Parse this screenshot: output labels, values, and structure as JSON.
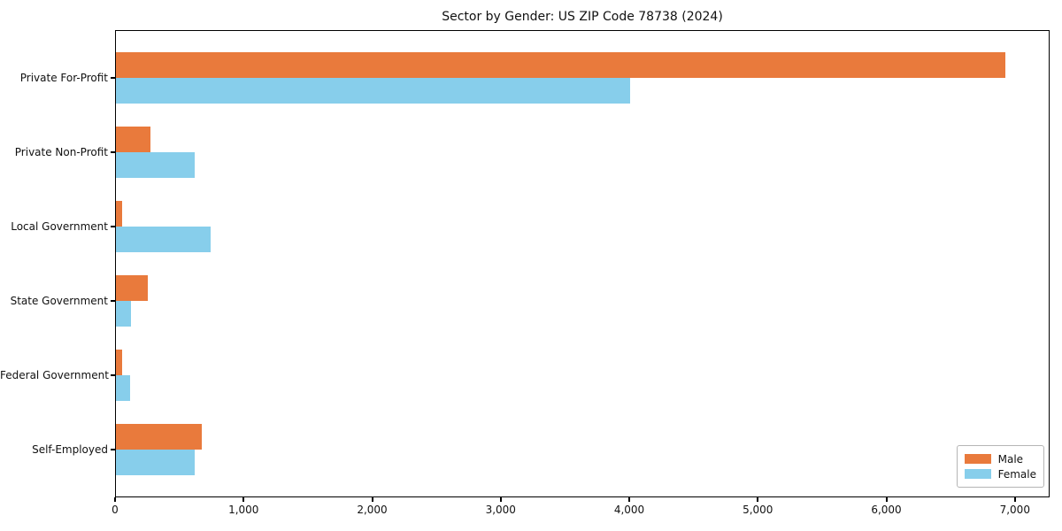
{
  "chart_data": {
    "type": "bar",
    "orientation": "horizontal",
    "title": "Sector by Gender: US ZIP Code 78738 (2024)",
    "categories": [
      "Private For-Profit",
      "Private Non-Profit",
      "Local Government",
      "State Government",
      "Federal Government",
      "Self-Employed"
    ],
    "series": [
      {
        "name": "Male",
        "color": "#E97A3C",
        "values": [
          6920,
          270,
          50,
          250,
          45,
          670
        ]
      },
      {
        "name": "Female",
        "color": "#87CEEB",
        "values": [
          4000,
          610,
          740,
          120,
          110,
          610
        ]
      }
    ],
    "xlim": [
      0,
      7270
    ],
    "xticks": {
      "values": [
        0,
        1000,
        2000,
        3000,
        4000,
        5000,
        6000,
        7000
      ],
      "labels": [
        "0",
        "1,000",
        "2,000",
        "3,000",
        "4,000",
        "5,000",
        "6,000",
        "7,000"
      ]
    },
    "ylabel": "",
    "xlabel": "",
    "grid": false,
    "legend": {
      "position": "lower right",
      "entries": [
        "Male",
        "Female"
      ]
    }
  }
}
